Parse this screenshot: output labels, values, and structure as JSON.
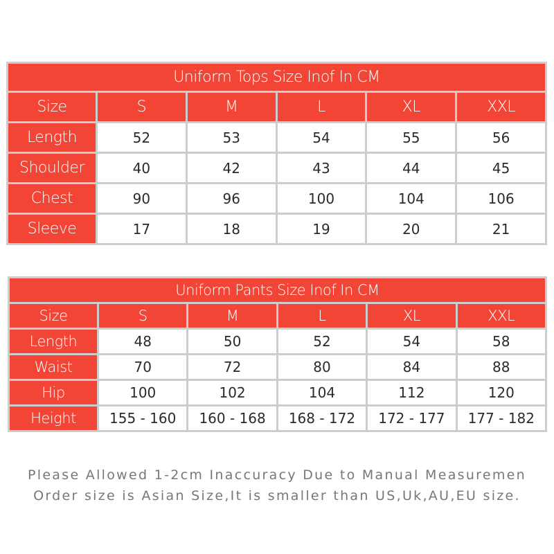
{
  "colors": {
    "header": "#f24535",
    "grid": "#cdcdcd"
  },
  "tops": {
    "title": "Uniform Tops Size Inof In CM",
    "header": [
      "Size",
      "S",
      "M",
      "L",
      "XL",
      "XXL"
    ],
    "rows": [
      [
        "Length",
        "52",
        "53",
        "54",
        "55",
        "56"
      ],
      [
        "Shoulder",
        "40",
        "42",
        "43",
        "44",
        "45"
      ],
      [
        "Chest",
        "90",
        "96",
        "100",
        "104",
        "106"
      ],
      [
        "Sleeve",
        "17",
        "18",
        "19",
        "20",
        "21"
      ]
    ]
  },
  "pants": {
    "title": "Uniform Pants Size Inof In CM",
    "header": [
      "Size",
      "S",
      "M",
      "L",
      "XL",
      "XXL"
    ],
    "rows": [
      [
        "Length",
        "48",
        "50",
        "52",
        "54",
        "58"
      ],
      [
        "Waist",
        "70",
        "72",
        "80",
        "84",
        "88"
      ],
      [
        "Hip",
        "100",
        "102",
        "104",
        "112",
        "120"
      ],
      [
        "Height",
        "155 - 160",
        "160 - 168",
        "168 - 172",
        "172 - 177",
        "177 - 182"
      ]
    ]
  },
  "notes": [
    "Please Allowed 1-2cm Inaccuracy Due to Manual Measuremen",
    "Order size is Asian Size,It is smaller than US,Uk,AU,EU size."
  ]
}
